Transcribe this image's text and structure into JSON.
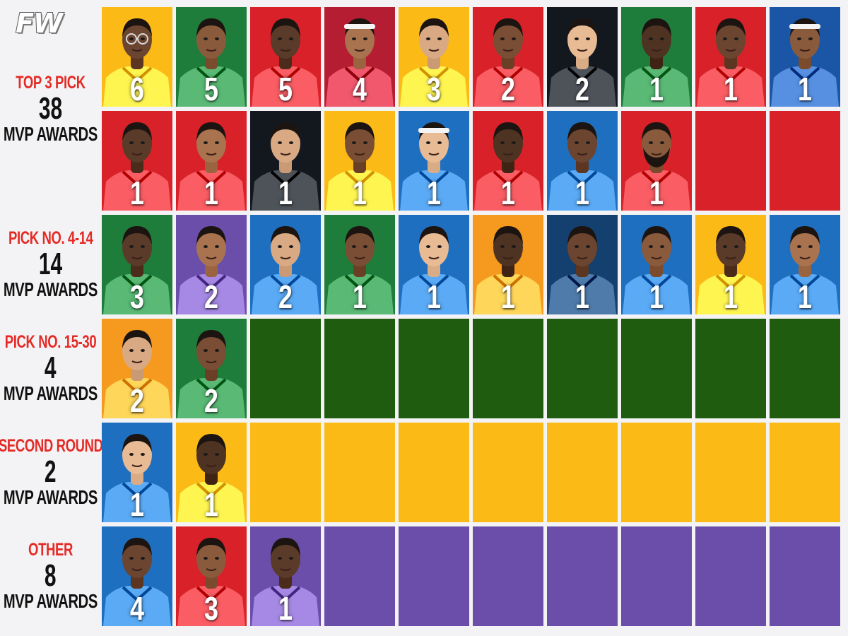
{
  "logo": {
    "text": "FW"
  },
  "colors": {
    "background": "#f3f3f5",
    "label_red": "#e52a25",
    "yellow": "#fbba16",
    "green": "#1e7d3a",
    "red": "#d92129",
    "crimson": "#b51d33",
    "black": "#13181f",
    "blue": "#1f6fc0",
    "navy": "#1b55a5",
    "purple": "#6a4ea9",
    "dark_navy": "#13406f",
    "orange": "#f59a1e",
    "empty_green": "#1f5c0f",
    "empty_yellow": "#fbba16",
    "empty_purple": "#6a4ea9"
  },
  "rows": [
    {
      "category": "TOP 3 PICK",
      "total": "38",
      "unit": "MVP AWARDS",
      "label_span": 2,
      "cells": [
        {
          "color": "yellow",
          "count": "6",
          "glasses": true
        },
        {
          "color": "green",
          "count": "5"
        },
        {
          "color": "red",
          "count": "5"
        },
        {
          "color": "crimson",
          "count": "4",
          "headband": true
        },
        {
          "color": "yellow",
          "count": "3"
        },
        {
          "color": "red",
          "count": "2"
        },
        {
          "color": "black",
          "count": "2"
        },
        {
          "color": "green",
          "count": "1"
        },
        {
          "color": "red",
          "count": "1"
        },
        {
          "color": "navy",
          "count": "1",
          "headband": true
        }
      ]
    },
    {
      "category": "",
      "total": "",
      "unit": "",
      "label_span": 0,
      "cells": [
        {
          "color": "red",
          "count": "1"
        },
        {
          "color": "red",
          "count": "1"
        },
        {
          "color": "black",
          "count": "1"
        },
        {
          "color": "yellow",
          "count": "1"
        },
        {
          "color": "blue",
          "count": "1",
          "headband": true
        },
        {
          "color": "red",
          "count": "1"
        },
        {
          "color": "blue",
          "count": "1"
        },
        {
          "color": "red",
          "count": "1",
          "beard": true
        },
        {
          "color": "red",
          "empty": true
        },
        {
          "color": "red",
          "empty": true
        }
      ]
    },
    {
      "category": "PICK NO. 4-14",
      "total": "14",
      "unit": "MVP AWARDS",
      "label_span": 1,
      "cells": [
        {
          "color": "green",
          "count": "3"
        },
        {
          "color": "purple",
          "count": "2"
        },
        {
          "color": "blue",
          "count": "2"
        },
        {
          "color": "green",
          "count": "1"
        },
        {
          "color": "blue",
          "count": "1"
        },
        {
          "color": "orange",
          "count": "1"
        },
        {
          "color": "dark_navy",
          "count": "1"
        },
        {
          "color": "blue",
          "count": "1"
        },
        {
          "color": "yellow",
          "count": "1"
        },
        {
          "color": "blue",
          "count": "1"
        }
      ]
    },
    {
      "category": "PICK NO. 15-30",
      "total": "4",
      "unit": "MVP AWARDS",
      "label_span": 1,
      "cells": [
        {
          "color": "orange",
          "count": "2"
        },
        {
          "color": "green",
          "count": "2"
        },
        {
          "color": "empty_green",
          "empty": true
        },
        {
          "color": "empty_green",
          "empty": true
        },
        {
          "color": "empty_green",
          "empty": true
        },
        {
          "color": "empty_green",
          "empty": true
        },
        {
          "color": "empty_green",
          "empty": true
        },
        {
          "color": "empty_green",
          "empty": true
        },
        {
          "color": "empty_green",
          "empty": true
        },
        {
          "color": "empty_green",
          "empty": true
        }
      ]
    },
    {
      "category": "SECOND ROUND",
      "total": "2",
      "unit": "MVP AWARDS",
      "label_span": 1,
      "cells": [
        {
          "color": "blue",
          "count": "1"
        },
        {
          "color": "yellow",
          "count": "1"
        },
        {
          "color": "empty_yellow",
          "empty": true
        },
        {
          "color": "empty_yellow",
          "empty": true
        },
        {
          "color": "empty_yellow",
          "empty": true
        },
        {
          "color": "empty_yellow",
          "empty": true
        },
        {
          "color": "empty_yellow",
          "empty": true
        },
        {
          "color": "empty_yellow",
          "empty": true
        },
        {
          "color": "empty_yellow",
          "empty": true
        },
        {
          "color": "empty_yellow",
          "empty": true
        }
      ]
    },
    {
      "category": "OTHER",
      "total": "8",
      "unit": "MVP AWARDS",
      "label_span": 1,
      "cells": [
        {
          "color": "blue",
          "count": "4"
        },
        {
          "color": "red",
          "count": "3"
        },
        {
          "color": "purple",
          "count": "1"
        },
        {
          "color": "empty_purple",
          "empty": true
        },
        {
          "color": "empty_purple",
          "empty": true
        },
        {
          "color": "empty_purple",
          "empty": true
        },
        {
          "color": "empty_purple",
          "empty": true
        },
        {
          "color": "empty_purple",
          "empty": true
        },
        {
          "color": "empty_purple",
          "empty": true
        },
        {
          "color": "empty_purple",
          "empty": true
        }
      ]
    }
  ]
}
